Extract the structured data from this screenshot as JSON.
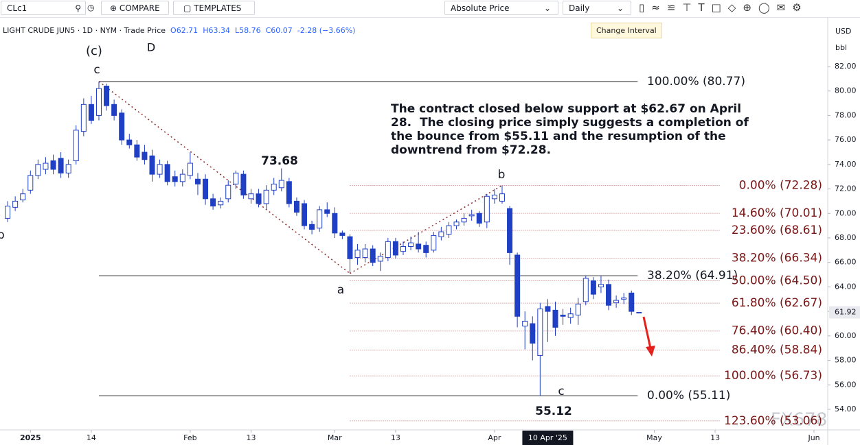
{
  "toolbar": {
    "symbol": "CLc1",
    "compare": "COMPARE",
    "templates": "TEMPLATES",
    "price_mode": "Absolute Price",
    "interval": "Daily",
    "tooltip": "Change Interval"
  },
  "legend": {
    "title": "LIGHT CRUDE JUN5 · 1D · NYM · Trade Price",
    "open": "O62.71",
    "high": "H63.34",
    "low": "L58.76",
    "close": "C60.07",
    "change": "-2.28 (−3.66%)"
  },
  "currency": "USD",
  "unit": "bbl",
  "watermark": "FX678",
  "chart_data": {
    "type": "candlestick",
    "categories": [
      null,
      null,
      null,
      null,
      null,
      null,
      null,
      null,
      null,
      null,
      null,
      null,
      null,
      null,
      null,
      null,
      null,
      null,
      null,
      null,
      null,
      null,
      null,
      null,
      null,
      null,
      null,
      null,
      null,
      null,
      null,
      null,
      null,
      null,
      null,
      null,
      null,
      null,
      null,
      null,
      null,
      null,
      null,
      null,
      null,
      null,
      null,
      null,
      null,
      null,
      null,
      null,
      null,
      null,
      null,
      null,
      null,
      null,
      null,
      null,
      null,
      null,
      null,
      null,
      null,
      null,
      null,
      null,
      null,
      null,
      null,
      null,
      null,
      null,
      null,
      null,
      null,
      null,
      null,
      null,
      null,
      null,
      null,
      null
    ],
    "open": [
      69.6,
      70.5,
      71.1,
      71.9,
      73.1,
      73.6,
      74.3,
      74.5,
      73.3,
      74.3,
      76.7,
      78.9,
      78.0,
      80.4,
      78.9,
      78.2,
      76.0,
      75.6,
      75.0,
      74.7,
      73.2,
      74.0,
      73.0,
      72.6,
      73.1,
      72.8,
      72.8,
      71.2,
      70.7,
      71.2,
      72.4,
      73.2,
      71.2,
      71.6,
      70.8,
      71.9,
      72.1,
      72.6,
      71.0,
      70.8,
      69.1,
      68.8,
      70.3,
      70.0,
      68.4,
      68.1,
      66.4,
      66.4,
      67.1,
      66.1,
      66.4,
      67.7,
      66.9,
      67.3,
      67.5,
      67.4,
      67.0,
      68.1,
      68.3,
      69.0,
      69.3,
      69.8,
      70.0,
      69.3,
      71.2,
      71.0,
      70.4,
      66.6,
      60.8,
      61.0,
      58.4,
      62.4,
      62.1,
      61.7,
      61.5,
      61.7,
      62.8,
      64.5,
      64.0,
      64.2,
      62.7,
      63.0,
      63.5,
      61.92
    ],
    "high": [
      71.0,
      71.4,
      72.0,
      73.5,
      74.4,
      74.6,
      74.8,
      75.0,
      74.4,
      77.2,
      79.4,
      79.6,
      80.77,
      80.6,
      79.3,
      78.5,
      76.5,
      76.0,
      75.6,
      75.2,
      74.4,
      74.3,
      73.5,
      73.6,
      75.0,
      73.3,
      73.2,
      71.6,
      71.3,
      72.7,
      73.5,
      73.5,
      72.0,
      72.0,
      72.3,
      72.9,
      73.68,
      72.9,
      71.3,
      71.1,
      69.4,
      70.6,
      70.9,
      70.5,
      68.6,
      68.3,
      67.5,
      67.5,
      67.4,
      66.8,
      68.0,
      68.0,
      67.7,
      68.1,
      68.5,
      67.7,
      68.5,
      68.9,
      69.3,
      69.5,
      70.0,
      70.3,
      70.2,
      71.6,
      72.0,
      72.28,
      70.6,
      66.8,
      62.0,
      61.6,
      62.7,
      63.0,
      62.8,
      62.2,
      62.3,
      63.1,
      64.9,
      64.8,
      64.9,
      64.6,
      63.3,
      63.5,
      63.7,
      61.92
    ],
    "low": [
      69.3,
      70.2,
      70.9,
      71.6,
      72.8,
      73.2,
      73.2,
      72.9,
      72.9,
      74.0,
      76.3,
      77.3,
      77.6,
      78.4,
      77.6,
      75.6,
      75.3,
      74.3,
      74.0,
      72.6,
      72.9,
      72.3,
      72.2,
      72.2,
      72.8,
      71.5,
      70.7,
      70.3,
      70.4,
      70.9,
      72.0,
      71.2,
      70.8,
      70.5,
      70.3,
      71.5,
      71.8,
      70.5,
      69.8,
      68.7,
      68.3,
      68.5,
      69.7,
      68.0,
      67.9,
      65.1,
      65.8,
      66.0,
      65.7,
      65.3,
      66.1,
      66.3,
      66.6,
      67.0,
      66.8,
      66.4,
      66.8,
      67.8,
      68.0,
      68.7,
      69.0,
      69.4,
      68.9,
      68.8,
      70.8,
      70.8,
      65.8,
      60.7,
      58.9,
      58.0,
      55.12,
      59.5,
      60.0,
      60.9,
      61.0,
      60.9,
      62.5,
      63.0,
      63.5,
      62.1,
      62.3,
      62.6,
      61.7,
      61.92
    ],
    "close": [
      70.6,
      71.0,
      71.6,
      73.1,
      74.0,
      74.1,
      73.6,
      73.3,
      74.0,
      76.8,
      78.9,
      77.6,
      80.2,
      78.8,
      78.0,
      76.0,
      75.6,
      74.6,
      74.4,
      73.2,
      74.0,
      72.6,
      72.6,
      73.2,
      74.1,
      72.4,
      71.2,
      70.6,
      71.0,
      72.3,
      73.3,
      71.5,
      71.6,
      70.8,
      71.9,
      72.4,
      72.7,
      70.8,
      70.1,
      69.0,
      68.7,
      70.3,
      70.0,
      68.4,
      68.2,
      66.3,
      67.0,
      67.1,
      66.0,
      66.5,
      67.7,
      66.6,
      67.3,
      67.6,
      67.1,
      66.8,
      68.2,
      68.5,
      69.0,
      69.3,
      69.6,
      69.9,
      69.2,
      71.4,
      71.5,
      71.6,
      66.8,
      61.6,
      61.2,
      59.4,
      62.2,
      62.0,
      60.7,
      61.6,
      61.8,
      62.6,
      64.7,
      63.4,
      64.2,
      62.5,
      62.9,
      63.1,
      62.0,
      61.92
    ],
    "up_color": "#ffffff",
    "down_color": "#1f3fc4",
    "outline_color": "#1f3fc4",
    "xlim": [
      -1,
      107.8
    ],
    "xticks": [
      {
        "value": 3,
        "label": "2025"
      },
      {
        "value": 11,
        "label": "14"
      },
      {
        "value": 24,
        "label": "Feb"
      },
      {
        "value": 32,
        "label": "13"
      },
      {
        "value": 43,
        "label": "Mar"
      },
      {
        "value": 51,
        "label": "13"
      },
      {
        "value": 64,
        "label": "Apr"
      },
      {
        "value": 85,
        "label": "May"
      },
      {
        "value": 93,
        "label": "13"
      },
      {
        "value": 106,
        "label": "Jun"
      }
    ],
    "crosshair_x": {
      "value": 71,
      "label": "10 Apr '25"
    },
    "ylim": [
      52.32,
      85.75
    ],
    "yticks": [
      {
        "value": 82,
        "label": "82.00"
      },
      {
        "value": 80,
        "label": "80.00"
      },
      {
        "value": 78,
        "label": "78.00"
      },
      {
        "value": 76,
        "label": "76.00"
      },
      {
        "value": 74,
        "label": "74.00"
      },
      {
        "value": 72,
        "label": "72.00"
      },
      {
        "value": 70,
        "label": "70.00"
      },
      {
        "value": 68,
        "label": "68.00"
      },
      {
        "value": 66,
        "label": "66.00"
      },
      {
        "value": 64,
        "label": "64.00"
      },
      {
        "value": 62,
        "label": "62.00"
      },
      {
        "value": 60,
        "label": "60.00"
      },
      {
        "value": 58,
        "label": "58.00"
      },
      {
        "value": 56,
        "label": "56.00"
      },
      {
        "value": 54,
        "label": "54.00"
      }
    ],
    "last_price": {
      "value": 61.92,
      "label": "61.92"
    },
    "fib_levels": [
      {
        "label": "100.00% (80.77)",
        "value": 80.77,
        "style": "solid"
      },
      {
        "label": "38.20% (64.91)",
        "value": 64.91,
        "style": "solid"
      },
      {
        "label": "0.00% (55.11)",
        "value": 55.11,
        "style": "solid"
      },
      {
        "label": "0.00% (72.28)",
        "value": 72.28,
        "style": "dotted"
      },
      {
        "label": "14.60% (70.01)",
        "value": 70.01,
        "style": "dotted"
      },
      {
        "label": "23.60% (68.61)",
        "value": 68.61,
        "style": "dotted"
      },
      {
        "label": "38.20% (66.34)",
        "value": 66.34,
        "style": "dotted"
      },
      {
        "label": "50.00% (64.50)",
        "value": 64.5,
        "style": "dotted"
      },
      {
        "label": "61.80% (62.67)",
        "value": 62.67,
        "style": "dotted"
      },
      {
        "label": "76.40% (60.40)",
        "value": 60.4,
        "style": "dotted"
      },
      {
        "label": "86.40% (58.84)",
        "value": 58.84,
        "style": "dotted"
      },
      {
        "label": "100.00% (56.73)",
        "value": 56.73,
        "style": "dotted"
      },
      {
        "label": "123.60% (53.06)",
        "value": 53.06,
        "style": "dotted"
      }
    ],
    "wave_lines": [
      {
        "x": [
          12,
          45
        ],
        "y": [
          80.77,
          65.1
        ]
      },
      {
        "x": [
          45,
          65
        ],
        "y": [
          65.1,
          72.28
        ]
      }
    ],
    "annotations": [
      "(c)",
      "D",
      "c",
      "b",
      "73.68",
      "a",
      "b",
      "c",
      "55.12"
    ],
    "note": [
      "The contract closed below support at $62.67 on April",
      "28.  The closing price simply suggests a completion of",
      "the bounce from $55.11 and the resumption of the",
      "downtrend from $72.28."
    ]
  }
}
